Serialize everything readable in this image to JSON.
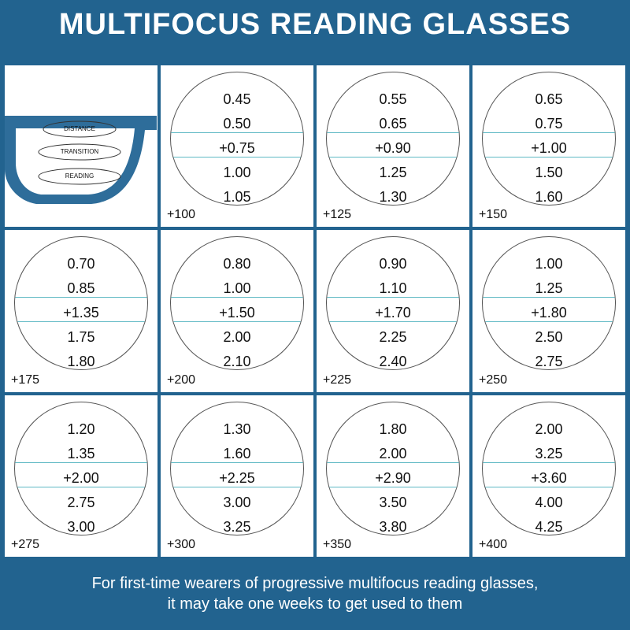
{
  "title": "MULTIFOCUS READING GLASSES",
  "glasses": {
    "zones": [
      "DISTANCE",
      "TRANSITION",
      "READING"
    ],
    "frame_color": "#2e6d9a"
  },
  "cells": [
    {
      "values": [
        "0.45",
        "0.50",
        "+0.75",
        "1.00",
        "1.05"
      ],
      "power": "+100"
    },
    {
      "values": [
        "0.55",
        "0.65",
        "+0.90",
        "1.25",
        "1.30"
      ],
      "power": "+125"
    },
    {
      "values": [
        "0.65",
        "0.75",
        "+1.00",
        "1.50",
        "1.60"
      ],
      "power": "+150"
    },
    {
      "values": [
        "0.70",
        "0.85",
        "+1.35",
        "1.75",
        "1.80"
      ],
      "power": "+175"
    },
    {
      "values": [
        "0.80",
        "1.00",
        "+1.50",
        "2.00",
        "2.10"
      ],
      "power": "+200"
    },
    {
      "values": [
        "0.90",
        "1.10",
        "+1.70",
        "2.25",
        "2.40"
      ],
      "power": "+225"
    },
    {
      "values": [
        "1.00",
        "1.25",
        "+1.80",
        "2.50",
        "2.75"
      ],
      "power": "+250"
    },
    {
      "values": [
        "1.20",
        "1.35",
        "+2.00",
        "2.75",
        "3.00"
      ],
      "power": "+275"
    },
    {
      "values": [
        "1.30",
        "1.60",
        "+2.25",
        "3.00",
        "3.25"
      ],
      "power": "+300"
    },
    {
      "values": [
        "1.80",
        "2.00",
        "+2.90",
        "3.50",
        "3.80"
      ],
      "power": "+350"
    },
    {
      "values": [
        "2.00",
        "3.25",
        "+3.60",
        "4.00",
        "4.25"
      ],
      "power": "+400"
    }
  ],
  "footer": {
    "line1": "For first-time wearers of progressive multifocus reading glasses,",
    "line2": "it may take one weeks to get used to them"
  },
  "colors": {
    "background": "#22638f",
    "divider_line": "#5fb9c4"
  }
}
